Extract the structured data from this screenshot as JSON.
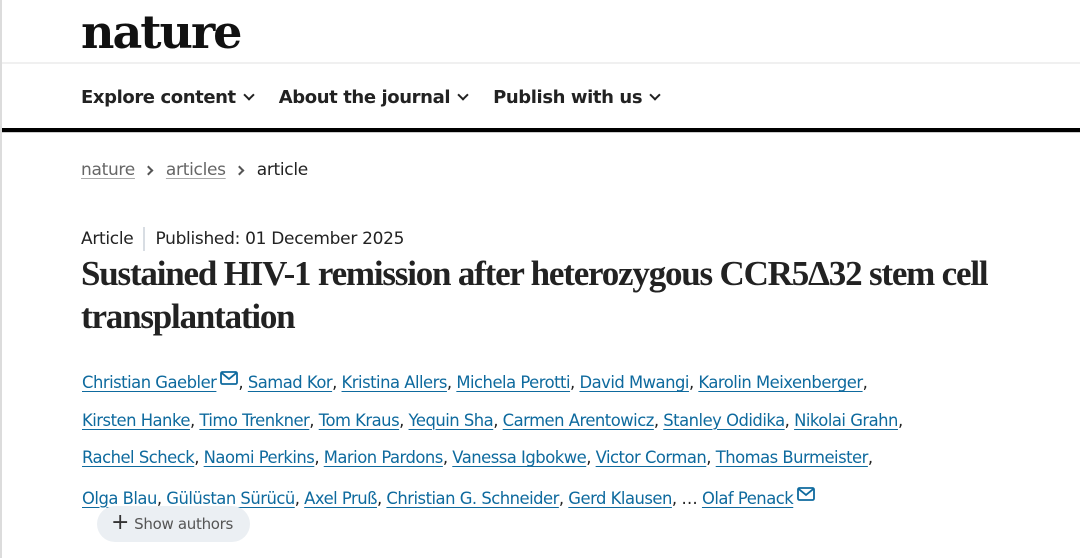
{
  "header": {
    "logo": "nature",
    "nav": [
      {
        "label": "Explore content"
      },
      {
        "label": "About the journal"
      },
      {
        "label": "Publish with us"
      }
    ]
  },
  "breadcrumb": {
    "items": [
      {
        "label": "nature",
        "link": true
      },
      {
        "label": "articles",
        "link": true
      },
      {
        "label": "article",
        "link": false
      }
    ]
  },
  "article": {
    "type": "Article",
    "published": "Published: 01 December 2025",
    "title": "Sustained HIV-1 remission after heterozygous CCR5Δ32 stem cell transplantation",
    "authors": [
      {
        "name": "Christian Gaebler",
        "mail": true
      },
      {
        "name": "Samad Kor"
      },
      {
        "name": "Kristina Allers"
      },
      {
        "name": "Michela Perotti"
      },
      {
        "name": "David Mwangi"
      },
      {
        "name": "Karolin Meixenberger"
      },
      {
        "name": "Kirsten Hanke"
      },
      {
        "name": "Timo Trenkner"
      },
      {
        "name": "Tom Kraus"
      },
      {
        "name": "Yequin Sha"
      },
      {
        "name": "Carmen Arentowicz"
      },
      {
        "name": "Stanley Odidika"
      },
      {
        "name": "Nikolai Grahn"
      },
      {
        "name": "Rachel Scheck"
      },
      {
        "name": "Naomi Perkins"
      },
      {
        "name": "Marion Pardons"
      },
      {
        "name": "Vanessa Igbokwe"
      },
      {
        "name": "Victor Corman"
      },
      {
        "name": "Thomas Burmeister"
      },
      {
        "name": "Olga Blau"
      },
      {
        "name": "Gülüstan Sürücü"
      },
      {
        "name": "Axel Pruß"
      },
      {
        "name": "Christian G. Schneider"
      },
      {
        "name": "Gerd Klausen"
      },
      {
        "name": "Olaf Penack",
        "mail": true
      }
    ],
    "ellipsis": "…",
    "show_authors_label": "Show authors",
    "show_authors_icon": "plus-icon",
    "mail_icon": "envelope-icon"
  },
  "colors": {
    "link": "#0e6a9e",
    "text": "#222222",
    "rule": "#000000",
    "pill_bg": "#ebeff3"
  }
}
